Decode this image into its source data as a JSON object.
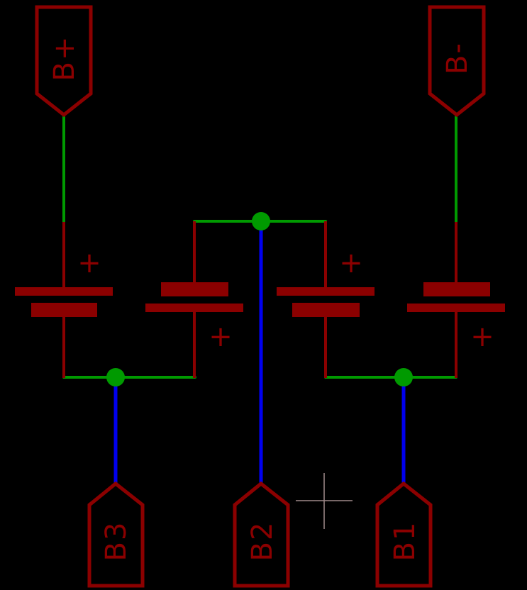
{
  "colors": {
    "background": "#000000",
    "symbol": "#8b0000",
    "net": "#009a00",
    "net_highlight": "#0000ee",
    "junction": "#009a00",
    "crosshair": "#a08a8a"
  },
  "ports": {
    "b_plus": "B+",
    "b_minus": "B-",
    "b1": "B1",
    "b2": "B2",
    "b3": "B3"
  },
  "batteries": [
    {
      "polarity_mark": "+"
    },
    {
      "polarity_mark": "+"
    },
    {
      "polarity_mark": "+"
    },
    {
      "polarity_mark": "+"
    }
  ],
  "icons": {
    "cursor": "crosshair-icon",
    "junction": "junction-dot-icon",
    "battery": "battery-cell-icon"
  }
}
